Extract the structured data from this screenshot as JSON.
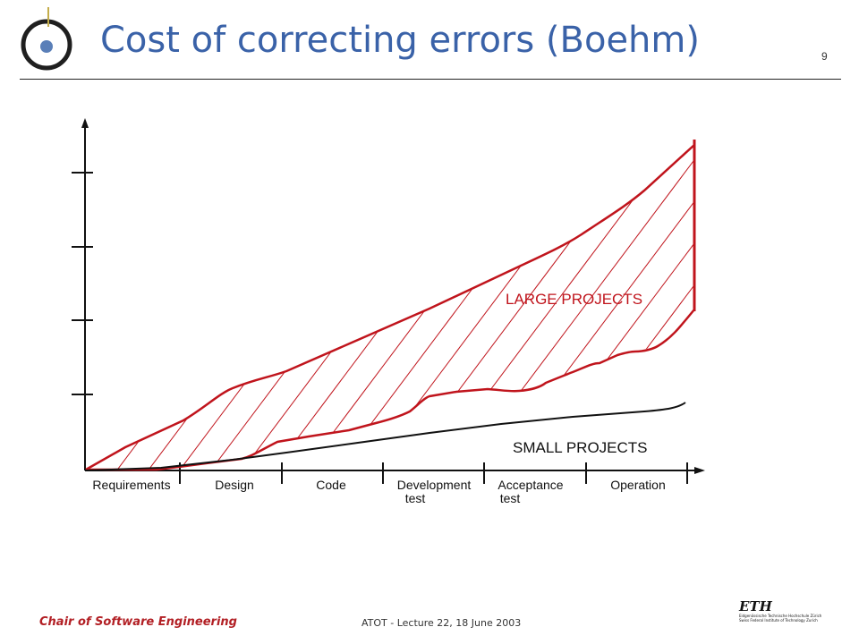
{
  "slide": {
    "title": "Cost of correcting errors (Boehm)",
    "page_number": "9"
  },
  "diagram": {
    "phases": [
      {
        "line1": "Requirements",
        "line2": ""
      },
      {
        "line1": "Design",
        "line2": ""
      },
      {
        "line1": "Code",
        "line2": ""
      },
      {
        "line1": "Development",
        "line2": "test"
      },
      {
        "line1": "Acceptance",
        "line2": "test"
      },
      {
        "line1": "Operation",
        "line2": ""
      }
    ],
    "large_label": "LARGE PROJECTS",
    "small_label": "SMALL PROJECTS",
    "colors": {
      "large": "#c0141c",
      "small": "#111111",
      "axis": "#111111"
    }
  },
  "footer": {
    "chair": "Chair of Software Engineering",
    "lecture": "ATOT - Lecture 22, 18 June 2003",
    "eth_mark": "ETH",
    "eth_line1": "Eidgenössische Technische Hochschule Zürich",
    "eth_line2": "Swiss Federal Institute of Technology Zurich"
  }
}
